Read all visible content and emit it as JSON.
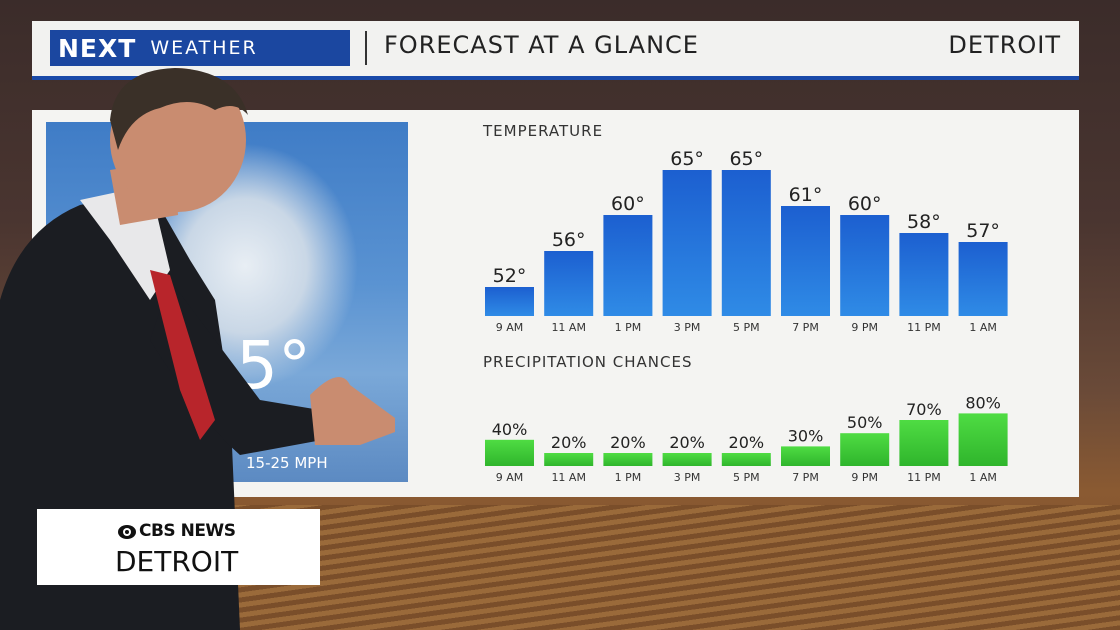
{
  "header": {
    "logo_next": "NEXT",
    "logo_weather": "WEATHER",
    "title": "FORECAST AT A GLANCE",
    "city": "DETROIT"
  },
  "current": {
    "temp_partial": "5°",
    "wind_partial": "15-25 MPH"
  },
  "broadcaster": {
    "brand": "CBS NEWS",
    "city": "DETROIT"
  },
  "colors": {
    "header_blue": "#1b47a0",
    "temp_bar": "#1f6fd6",
    "precip_bar": "#3ccb3a"
  },
  "chart_data": [
    {
      "type": "bar",
      "title": "TEMPERATURE",
      "categories": [
        "9 AM",
        "11 AM",
        "1 PM",
        "3 PM",
        "5 PM",
        "7 PM",
        "9 PM",
        "11 PM",
        "1 AM"
      ],
      "values": [
        52,
        56,
        60,
        65,
        65,
        61,
        60,
        58,
        57
      ],
      "value_labels": [
        "52°",
        "56°",
        "60°",
        "65°",
        "65°",
        "61°",
        "60°",
        "58°",
        "57°"
      ]
    },
    {
      "type": "bar",
      "title": "PRECIPITATION CHANCES",
      "categories": [
        "9 AM",
        "11 AM",
        "1 PM",
        "3 PM",
        "5 PM",
        "7 PM",
        "9 PM",
        "11 PM",
        "1 AM"
      ],
      "values": [
        40,
        20,
        20,
        20,
        20,
        30,
        50,
        70,
        80
      ],
      "value_labels": [
        "40%",
        "20%",
        "20%",
        "20%",
        "20%",
        "30%",
        "50%",
        "70%",
        "80%"
      ]
    }
  ]
}
